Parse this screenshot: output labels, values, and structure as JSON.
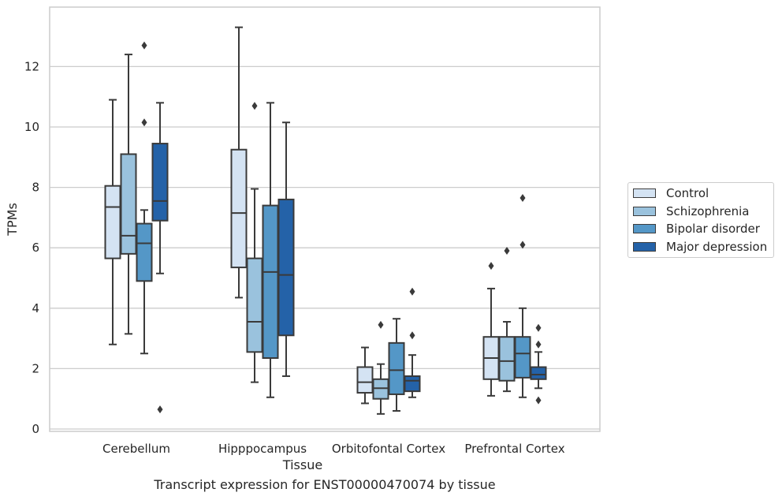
{
  "chart_data": {
    "type": "boxplot",
    "xlabel": "Tissue",
    "ylabel": "TPMs",
    "ylim": [
      -0.15,
      14
    ],
    "yticks": [
      0,
      2,
      4,
      6,
      8,
      10,
      12
    ],
    "grid": "horizontal",
    "legend_placement": "right",
    "categories": [
      "Cerebellum",
      "Hipppocampus",
      "Orbitofontal Cortex",
      "Prefrontal Cortex"
    ],
    "series": [
      {
        "name": "Control",
        "color": "#d4e3f3",
        "boxes": [
          {
            "whisker_low": 2.8,
            "q1": 5.65,
            "median": 7.35,
            "q3": 8.05,
            "whisker_high": 10.9,
            "outliers": []
          },
          {
            "whisker_low": 4.35,
            "q1": 5.35,
            "median": 7.15,
            "q3": 9.25,
            "whisker_high": 13.3,
            "outliers": []
          },
          {
            "whisker_low": 0.85,
            "q1": 1.2,
            "median": 1.55,
            "q3": 2.05,
            "whisker_high": 2.7,
            "outliers": []
          },
          {
            "whisker_low": 1.1,
            "q1": 1.65,
            "median": 2.35,
            "q3": 3.05,
            "whisker_high": 4.65,
            "outliers": [
              5.4
            ]
          }
        ]
      },
      {
        "name": "Schizophrenia",
        "color": "#9ac2dd",
        "boxes": [
          {
            "whisker_low": 3.15,
            "q1": 5.8,
            "median": 6.4,
            "q3": 9.1,
            "whisker_high": 12.4,
            "outliers": []
          },
          {
            "whisker_low": 1.55,
            "q1": 2.55,
            "median": 3.55,
            "q3": 5.65,
            "whisker_high": 7.95,
            "outliers": [
              10.7
            ]
          },
          {
            "whisker_low": 0.5,
            "q1": 1.0,
            "median": 1.35,
            "q3": 1.65,
            "whisker_high": 2.15,
            "outliers": [
              3.45
            ]
          },
          {
            "whisker_low": 1.25,
            "q1": 1.6,
            "median": 2.25,
            "q3": 3.05,
            "whisker_high": 3.55,
            "outliers": [
              5.9
            ]
          }
        ]
      },
      {
        "name": "Bipolar disorder",
        "color": "#5497c7",
        "boxes": [
          {
            "whisker_low": 2.5,
            "q1": 4.9,
            "median": 6.15,
            "q3": 6.8,
            "whisker_high": 7.25,
            "outliers": [
              10.15,
              12.7
            ]
          },
          {
            "whisker_low": 1.05,
            "q1": 2.35,
            "median": 5.2,
            "q3": 7.4,
            "whisker_high": 10.8,
            "outliers": []
          },
          {
            "whisker_low": 0.6,
            "q1": 1.15,
            "median": 1.95,
            "q3": 2.85,
            "whisker_high": 3.65,
            "outliers": []
          },
          {
            "whisker_low": 1.05,
            "q1": 1.7,
            "median": 2.5,
            "q3": 3.05,
            "whisker_high": 4.0,
            "outliers": [
              6.1,
              7.65
            ]
          }
        ]
      },
      {
        "name": "Major depression",
        "color": "#2462a8",
        "boxes": [
          {
            "whisker_low": 5.15,
            "q1": 6.9,
            "median": 7.55,
            "q3": 9.45,
            "whisker_high": 10.8,
            "outliers": [
              0.65
            ]
          },
          {
            "whisker_low": 1.75,
            "q1": 3.1,
            "median": 5.1,
            "q3": 7.6,
            "whisker_high": 10.15,
            "outliers": []
          },
          {
            "whisker_low": 1.05,
            "q1": 1.25,
            "median": 1.6,
            "q3": 1.75,
            "whisker_high": 2.45,
            "outliers": [
              3.1,
              4.55
            ]
          },
          {
            "whisker_low": 1.35,
            "q1": 1.65,
            "median": 1.8,
            "q3": 2.05,
            "whisker_high": 2.55,
            "outliers": [
              0.95,
              2.8,
              3.35
            ]
          }
        ]
      }
    ]
  },
  "caption": "Transcript expression for ENST00000470074 by tissue"
}
